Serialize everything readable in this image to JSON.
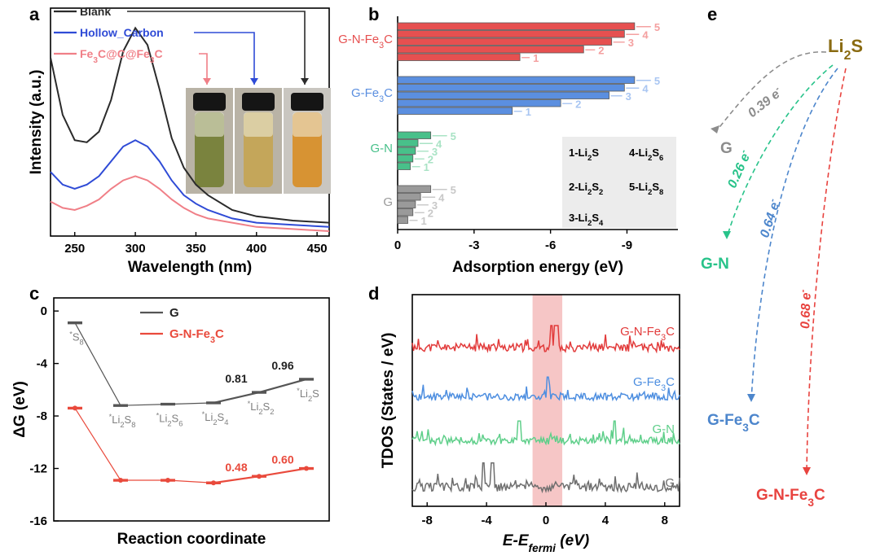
{
  "chart_data": [
    {
      "panel": "a",
      "type": "line",
      "xlabel": "Wavelength (nm)",
      "ylabel": "Intensity (a.u.)",
      "xlim": [
        230,
        460
      ],
      "xticks": [
        250,
        300,
        350,
        400,
        450
      ],
      "series": [
        {
          "name": "Blank",
          "color": "#2b2b2b",
          "x": [
            230,
            240,
            250,
            260,
            270,
            280,
            290,
            300,
            310,
            320,
            330,
            340,
            350,
            360,
            380,
            400,
            430,
            460
          ],
          "y": [
            0.82,
            0.55,
            0.43,
            0.42,
            0.47,
            0.62,
            0.85,
            0.96,
            0.88,
            0.67,
            0.44,
            0.3,
            0.22,
            0.17,
            0.1,
            0.07,
            0.05,
            0.04
          ]
        },
        {
          "name": "Hollow_Carbon",
          "color": "#2f4bd6",
          "x": [
            230,
            240,
            250,
            260,
            270,
            280,
            290,
            300,
            310,
            320,
            330,
            340,
            350,
            360,
            380,
            400,
            430,
            460
          ],
          "y": [
            0.28,
            0.22,
            0.2,
            0.22,
            0.26,
            0.33,
            0.4,
            0.43,
            0.4,
            0.33,
            0.24,
            0.17,
            0.13,
            0.1,
            0.06,
            0.04,
            0.03,
            0.02
          ]
        },
        {
          "name": "Fe3C@C@Fe3C",
          "color": "#f07f87",
          "x": [
            230,
            240,
            250,
            260,
            270,
            280,
            290,
            300,
            310,
            320,
            330,
            340,
            350,
            360,
            380,
            400,
            430,
            460
          ],
          "y": [
            0.14,
            0.11,
            0.1,
            0.12,
            0.15,
            0.2,
            0.24,
            0.26,
            0.24,
            0.2,
            0.15,
            0.11,
            0.08,
            0.06,
            0.04,
            0.02,
            0.01,
            0.0
          ]
        }
      ],
      "legend": [
        {
          "label": "Blank",
          "color": "#2b2b2b"
        },
        {
          "label": "Hollow_Carbon",
          "color": "#2f4bd6"
        },
        {
          "label": "Fe",
          "sub": "3",
          "rest": "C@C@Fe",
          "sub2": "3",
          "tail": "C",
          "color": "#f07f87"
        }
      ]
    },
    {
      "panel": "b",
      "type": "bar",
      "xlabel": "Adsorption energy (eV)",
      "xlim": [
        0,
        -11
      ],
      "xticks": [
        0,
        -3,
        -6,
        -9
      ],
      "groups": [
        {
          "name": "G-N-Fe",
          "sub": "3",
          "tail": "C",
          "color": "#e65050",
          "light": "#f4a0a0",
          "values": [
            -4.8,
            -7.3,
            -8.4,
            -8.9,
            -9.3
          ],
          "labels": [
            "1",
            "2",
            "3",
            "4",
            "5"
          ]
        },
        {
          "name": "G-Fe",
          "sub": "3",
          "tail": "C",
          "color": "#5b8fe0",
          "light": "#a9c6f2",
          "values": [
            -4.5,
            -6.4,
            -8.3,
            -8.9,
            -9.3
          ],
          "labels": [
            "1",
            "2",
            "3",
            "4",
            "5"
          ]
        },
        {
          "name": "G-N",
          "sub": "",
          "tail": "",
          "color": "#48c08a",
          "light": "#a9e3c5",
          "values": [
            -0.5,
            -0.6,
            -0.7,
            -0.8,
            -1.3
          ],
          "labels": [
            "1",
            "2",
            "3",
            "4",
            "5"
          ]
        },
        {
          "name": "G",
          "sub": "",
          "tail": "",
          "color": "#9a9a9a",
          "light": "#c8c8c8",
          "values": [
            -0.4,
            -0.6,
            -0.7,
            -0.9,
            -1.3
          ],
          "labels": [
            "1",
            "2",
            "3",
            "4",
            "5"
          ]
        }
      ],
      "key": [
        {
          "n": "1-Li",
          "s": "2",
          "t": "S"
        },
        {
          "n": "2-Li",
          "s": "2",
          "t": "S",
          "s2": "2"
        },
        {
          "n": "3-Li",
          "s": "2",
          "t": "S",
          "s2": "4"
        },
        {
          "n": "4-Li",
          "s": "2",
          "t": "S",
          "s2": "6"
        },
        {
          "n": "5-Li",
          "s": "2",
          "t": "S",
          "s2": "8"
        }
      ]
    },
    {
      "panel": "c",
      "type": "line",
      "xlabel": "Reaction coordinate",
      "ylabel": "ΔG (eV)",
      "ylim": [
        -16,
        1
      ],
      "yticks": [
        0,
        -4,
        -8,
        -12,
        -16
      ],
      "steps": [
        {
          "label": "S",
          "sub": "8",
          "subpre": ""
        },
        {
          "label": "Li",
          "sub": "2",
          "tail": "S",
          "sub2": "8"
        },
        {
          "label": "Li",
          "sub": "2",
          "tail": "S",
          "sub2": "6"
        },
        {
          "label": "Li",
          "sub": "2",
          "tail": "S",
          "sub2": "4"
        },
        {
          "label": "Li",
          "sub": "2",
          "tail": "S",
          "sub2": "2"
        },
        {
          "label": "Li",
          "sub": "2",
          "tail": "S",
          "sub2": ""
        }
      ],
      "series": [
        {
          "name": "G",
          "color": "#555555",
          "values": [
            -0.9,
            -7.2,
            -7.1,
            -7.0,
            -6.2,
            -5.2
          ],
          "barriers": [
            {
              "step": 3,
              "value": "0.81"
            },
            {
              "step": 4,
              "value": "0.96"
            }
          ]
        },
        {
          "name": "G-N-Fe",
          "sub": "3",
          "tail": "C",
          "color": "#e94a3c",
          "values": [
            -7.4,
            -12.9,
            -12.9,
            -13.1,
            -12.6,
            -12.0
          ],
          "barriers": [
            {
              "step": 3,
              "value": "0.48"
            },
            {
              "step": 4,
              "value": "0.60"
            }
          ]
        }
      ]
    },
    {
      "panel": "d",
      "type": "line",
      "xlabel": "E-E",
      "xlabel_sub": "fermi",
      "xlabel_tail": " (eV)",
      "ylabel": "TDOS (States / eV)",
      "xlim": [
        -9,
        9
      ],
      "xticks": [
        -8,
        -4,
        0,
        4,
        8
      ],
      "highlight": [
        -0.9,
        1.1
      ],
      "series": [
        {
          "name": "G-N-Fe",
          "sub": "3",
          "tail": "C",
          "color": "#e23b3b",
          "seed": 11,
          "amp": 10,
          "spikes": [
            0.4,
            0.6,
            0.8
          ]
        },
        {
          "name": "G-Fe",
          "sub": "3",
          "tail": "C",
          "color": "#4d8ee0",
          "seed": 23,
          "amp": 9,
          "spikes": [
            0.1
          ]
        },
        {
          "name": "G-N",
          "sub": "",
          "tail": "",
          "color": "#5fcf8a",
          "seed": 37,
          "amp": 9,
          "spikes": [
            -1.8,
            4.6
          ]
        },
        {
          "name": "G",
          "sub": "",
          "tail": "",
          "color": "#6e6e6e",
          "seed": 51,
          "amp": 11,
          "spikes": [
            -4.2,
            -3.6
          ]
        }
      ]
    },
    {
      "panel": "e",
      "type": "diagram",
      "source": {
        "name": "Li",
        "sub": "2",
        "tail": "S",
        "color": "#8a6b12"
      },
      "targets": [
        {
          "name": "G",
          "sub": "",
          "tail": "",
          "color": "#8c8c8c",
          "transfer": "0.39 e",
          "sup": "-"
        },
        {
          "name": "G-N",
          "sub": "",
          "tail": "",
          "color": "#28c38a",
          "transfer": "0.26 e",
          "sup": "-"
        },
        {
          "name": "G-Fe",
          "sub": "3",
          "tail": "C",
          "color": "#4d86cc",
          "transfer": "0.64 e",
          "sup": "-"
        },
        {
          "name": "G-N-Fe",
          "sub": "3",
          "tail": "C",
          "color": "#e8433f",
          "transfer": "0.68 e",
          "sup": "-"
        }
      ]
    }
  ],
  "panel_letters": [
    "a",
    "b",
    "c",
    "d",
    "e"
  ],
  "inset_vials": [
    "Fe3C@C@Fe3C",
    "Hollow_Carbon",
    "Blank"
  ]
}
